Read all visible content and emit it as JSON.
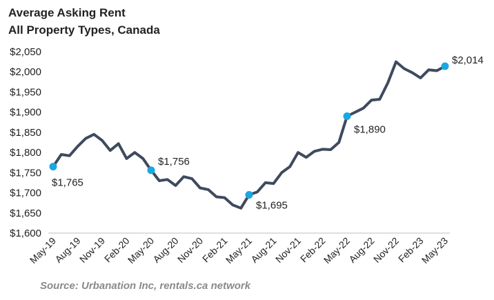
{
  "chart_data": {
    "type": "line",
    "title": "Average Asking Rent",
    "subtitle": "All Property Types, Canada",
    "source": "Source: Urbanation Inc, rentals.ca network",
    "color": "#3e4a5d",
    "marker_color": "#1aa7e3",
    "categories": [
      "May-19",
      null,
      null,
      "Aug-19",
      null,
      null,
      "Nov-19",
      null,
      null,
      "Feb-20",
      null,
      null,
      "May-20",
      null,
      null,
      "Aug-20",
      null,
      null,
      "Nov-20",
      null,
      null,
      "Feb-21",
      null,
      null,
      "May-21",
      null,
      null,
      "Aug-21",
      null,
      null,
      "Nov-21",
      null,
      null,
      "Feb-22",
      null,
      null,
      "May-22",
      null,
      null,
      "Aug-22",
      null,
      null,
      "Nov-22",
      null,
      null,
      "Feb-23",
      null,
      null,
      "May-23"
    ],
    "values": [
      1765,
      1795,
      1792,
      1815,
      1835,
      1845,
      1830,
      1805,
      1822,
      1785,
      1800,
      1785,
      1756,
      1730,
      1733,
      1718,
      1740,
      1735,
      1712,
      1708,
      1690,
      1688,
      1670,
      1662,
      1695,
      1702,
      1725,
      1723,
      1750,
      1765,
      1800,
      1788,
      1803,
      1808,
      1807,
      1825,
      1890,
      1900,
      1910,
      1930,
      1932,
      1973,
      2025,
      2008,
      1998,
      1985,
      2005,
      2003,
      2014
    ],
    "value_labels": [
      "$1,765",
      null,
      null,
      null,
      null,
      null,
      null,
      null,
      null,
      null,
      null,
      null,
      "$1,756",
      null,
      null,
      null,
      null,
      null,
      null,
      null,
      null,
      null,
      null,
      null,
      "$1,695",
      null,
      null,
      null,
      null,
      null,
      null,
      null,
      null,
      null,
      null,
      null,
      "$1,890",
      null,
      null,
      null,
      null,
      null,
      null,
      null,
      null,
      null,
      null,
      null,
      "$2,014"
    ],
    "ylim": [
      1600,
      2050
    ],
    "yticks": [
      {
        "value": 1600,
        "label": "$1,600"
      },
      {
        "value": 1650,
        "label": "$1,650"
      },
      {
        "value": 1700,
        "label": "$1,700"
      },
      {
        "value": 1750,
        "label": "$1,750"
      },
      {
        "value": 1800,
        "label": "$1,800"
      },
      {
        "value": 1850,
        "label": "$1,850"
      },
      {
        "value": 1900,
        "label": "$1,900"
      },
      {
        "value": 1950,
        "label": "$1,950"
      },
      {
        "value": 2000,
        "label": "$2,000"
      },
      {
        "value": 2050,
        "label": "$2,050"
      }
    ]
  }
}
